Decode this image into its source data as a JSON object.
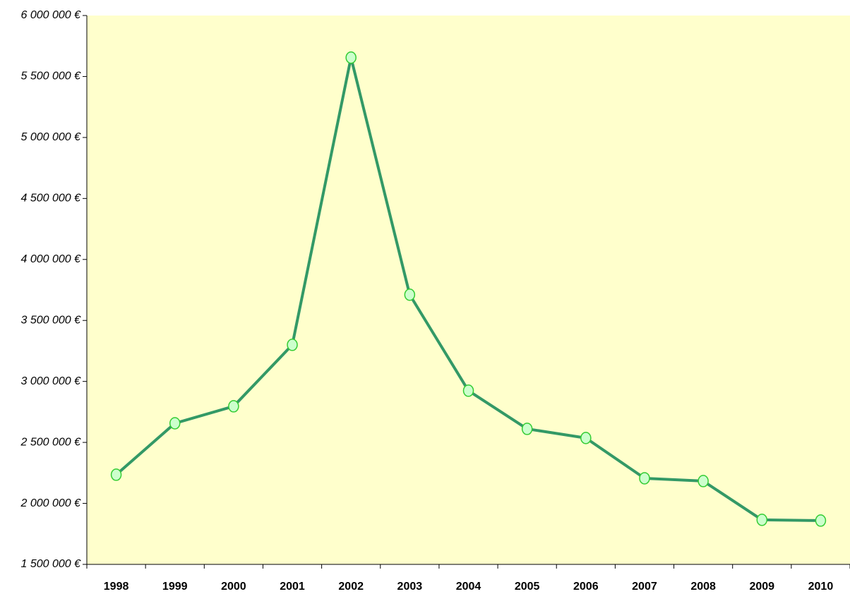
{
  "chart_data": {
    "type": "line",
    "categories": [
      "1998",
      "1999",
      "2000",
      "2001",
      "2002",
      "2003",
      "2004",
      "2005",
      "2006",
      "2007",
      "2008",
      "2009",
      "2010"
    ],
    "series": [
      {
        "color": "#339966",
        "marker_fill": "#ccffcc",
        "marker_stroke": "#33cc33",
        "values": [
          2235000,
          2657000,
          2796000,
          3300000,
          5655000,
          3711000,
          2924000,
          2611000,
          2536000,
          2206000,
          2183000,
          1865000,
          1859000
        ]
      }
    ],
    "ylim": [
      1500000,
      6000000
    ],
    "yticks": [
      {
        "value": 1500000,
        "label": "1 500 000 €"
      },
      {
        "value": 2000000,
        "label": "2 000 000 €"
      },
      {
        "value": 2500000,
        "label": "2 500 000 €"
      },
      {
        "value": 3000000,
        "label": "3 000 000 €"
      },
      {
        "value": 3500000,
        "label": "3 500 000 €"
      },
      {
        "value": 4000000,
        "label": "4 000 000 €"
      },
      {
        "value": 4500000,
        "label": "4 500 000 €"
      },
      {
        "value": 5000000,
        "label": "5 000 000 €"
      },
      {
        "value": 5500000,
        "label": "5 500 000 €"
      },
      {
        "value": 6000000,
        "label": "6 000 000 €"
      }
    ],
    "plot_background": "#ffffcc",
    "grid": false
  }
}
